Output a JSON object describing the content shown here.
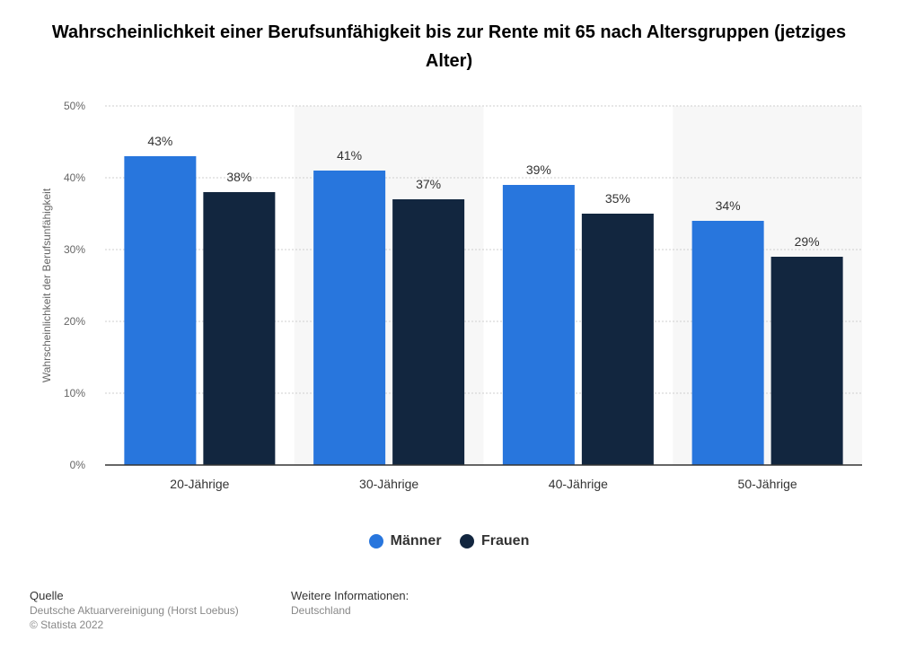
{
  "chart_data": {
    "type": "bar",
    "title": "Wahrscheinlichkeit einer Berufsunfähigkeit bis zur Rente mit 65 nach Altersgruppen (jetziges Alter)",
    "ylabel": "Wahrscheinlichkeit der Berufsunfähigkeit",
    "xlabel": "",
    "categories": [
      "20-Jährige",
      "30-Jährige",
      "40-Jährige",
      "50-Jährige"
    ],
    "series": [
      {
        "name": "Männer",
        "values": [
          43,
          41,
          39,
          34
        ],
        "color": "#2876dd"
      },
      {
        "name": "Frauen",
        "values": [
          38,
          37,
          35,
          29
        ],
        "color": "#12263f"
      }
    ],
    "ylim": [
      0,
      50
    ],
    "yticks": [
      "0%",
      "10%",
      "20%",
      "30%",
      "40%",
      "50%"
    ],
    "value_suffix": "%",
    "grid": true,
    "legend_position": "bottom"
  },
  "footer": {
    "source_heading": "Quelle",
    "source_text": "Deutsche Aktuarvereinigung (Horst Loebus)",
    "copyright": "© Statista 2022",
    "info_heading": "Weitere Informationen:",
    "info_text": "Deutschland"
  }
}
